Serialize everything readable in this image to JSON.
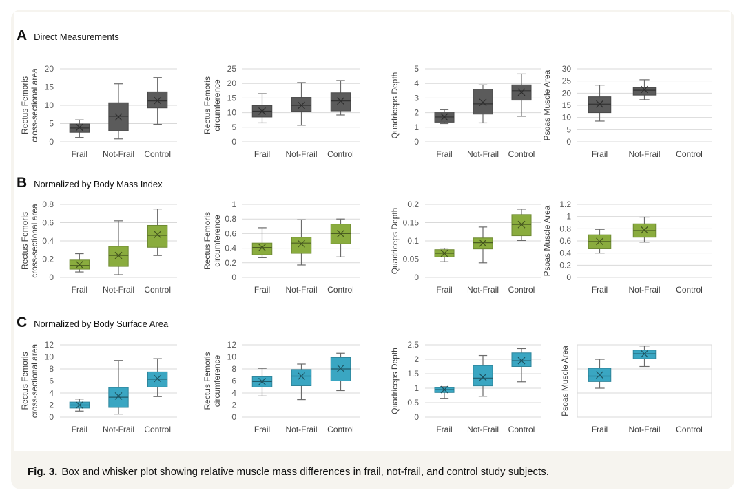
{
  "rows": [
    {
      "letter": "A",
      "title": "Direct Measurements"
    },
    {
      "letter": "B",
      "title": "Normalized  by Body Mass Index"
    },
    {
      "letter": "C",
      "title": "Normalized by Body Surface Area"
    }
  ],
  "caption": {
    "label": "Fig. 3.",
    "text": "Box and whisker plot showing relative muscle mass differences in frail, not-frail, and control study subjects."
  },
  "colors": {
    "A": "#5b5b5b",
    "B": "#8aac3e",
    "C": "#3aa6c2",
    "grid": "#d9d9d9",
    "axis_text": "#595959"
  },
  "chart_data": [
    {
      "type": "box",
      "panel": "A",
      "ylabel": "Rectus Femoris\ncross-sectional area",
      "categories": [
        "Frail",
        "Not-Frail",
        "Control"
      ],
      "ylim": [
        0,
        20
      ],
      "ticks": [
        0,
        5,
        10,
        15,
        20
      ],
      "boxes": [
        {
          "min": 1.2,
          "q1": 2.6,
          "median": 3.8,
          "q3": 4.9,
          "max": 6.0,
          "mean": 4.0
        },
        {
          "min": 0.8,
          "q1": 3.0,
          "median": 7.0,
          "q3": 10.7,
          "max": 15.9,
          "mean": 6.8
        },
        {
          "min": 4.8,
          "q1": 9.3,
          "median": 11.2,
          "q3": 13.7,
          "max": 17.6,
          "mean": 11.3
        }
      ]
    },
    {
      "type": "box",
      "panel": "A",
      "ylabel": "Rectus Femoris\ncircumference",
      "categories": [
        "Frail",
        "Not-Frail",
        "Control"
      ],
      "ylim": [
        0,
        25
      ],
      "ticks": [
        0,
        5,
        10,
        15,
        20,
        25
      ],
      "boxes": [
        {
          "min": 6.5,
          "q1": 8.5,
          "median": 10.5,
          "q3": 12.4,
          "max": 16.5,
          "mean": 10.5
        },
        {
          "min": 5.7,
          "q1": 10.5,
          "median": 12.5,
          "q3": 15.2,
          "max": 20.3,
          "mean": 12.5
        },
        {
          "min": 9.2,
          "q1": 10.6,
          "median": 14.0,
          "q3": 16.8,
          "max": 21.0,
          "mean": 14.0
        }
      ]
    },
    {
      "type": "box",
      "panel": "A",
      "ylabel": "Quadriceps  Depth",
      "categories": [
        "Frail",
        "Not-Frail",
        "Control"
      ],
      "ylim": [
        0,
        5
      ],
      "ticks": [
        0,
        1,
        2,
        3,
        4,
        5
      ],
      "boxes": [
        {
          "min": 1.25,
          "q1": 1.35,
          "median": 1.7,
          "q3": 2.05,
          "max": 2.2,
          "mean": 1.7
        },
        {
          "min": 1.3,
          "q1": 1.9,
          "median": 2.6,
          "q3": 3.6,
          "max": 3.9,
          "mean": 2.7
        },
        {
          "min": 1.75,
          "q1": 2.85,
          "median": 3.5,
          "q3": 3.9,
          "max": 4.65,
          "mean": 3.4
        }
      ]
    },
    {
      "type": "box",
      "panel": "A",
      "ylabel": "Psoas Muscle Area",
      "categories": [
        "Frail",
        "Not-Frail",
        "Control"
      ],
      "ylim": [
        0,
        30
      ],
      "ticks": [
        0,
        5,
        10,
        15,
        20,
        25,
        30
      ],
      "boxes": [
        {
          "min": 8.5,
          "q1": 12.0,
          "median": 15.5,
          "q3": 18.5,
          "max": 23.3,
          "mean": 15.5
        },
        {
          "min": 17.3,
          "q1": 19.2,
          "median": 21.2,
          "q3": 22.3,
          "max": 25.5,
          "mean": 21.5
        },
        null
      ]
    },
    {
      "type": "box",
      "panel": "B",
      "ylabel": "Rectus Femoris\ncross-sectional area",
      "categories": [
        "Frail",
        "Not-Frail",
        "Control"
      ],
      "ylim": [
        0,
        0.8
      ],
      "ticks": [
        0,
        0.2,
        0.4,
        0.6,
        0.8
      ],
      "boxes": [
        {
          "min": 0.06,
          "q1": 0.09,
          "median": 0.13,
          "q3": 0.19,
          "max": 0.26,
          "mean": 0.14
        },
        {
          "min": 0.03,
          "q1": 0.12,
          "median": 0.24,
          "q3": 0.34,
          "max": 0.62,
          "mean": 0.24
        },
        {
          "min": 0.24,
          "q1": 0.33,
          "median": 0.46,
          "q3": 0.57,
          "max": 0.75,
          "mean": 0.47
        }
      ]
    },
    {
      "type": "box",
      "panel": "B",
      "ylabel": "Rectus Femoris\ncircumference",
      "categories": [
        "Frail",
        "Not-Frail",
        "Control"
      ],
      "ylim": [
        0,
        1
      ],
      "ticks": [
        0,
        0.2,
        0.4,
        0.6,
        0.8,
        1
      ],
      "boxes": [
        {
          "min": 0.27,
          "q1": 0.31,
          "median": 0.41,
          "q3": 0.47,
          "max": 0.68,
          "mean": 0.41
        },
        {
          "min": 0.17,
          "q1": 0.33,
          "median": 0.47,
          "q3": 0.55,
          "max": 0.79,
          "mean": 0.46
        },
        {
          "min": 0.28,
          "q1": 0.46,
          "median": 0.6,
          "q3": 0.73,
          "max": 0.8,
          "mean": 0.6
        }
      ]
    },
    {
      "type": "box",
      "panel": "B",
      "ylabel": "Quadriceps  Depth",
      "categories": [
        "Frail",
        "Not-Frail",
        "Control"
      ],
      "ylim": [
        0,
        0.2
      ],
      "ticks": [
        0,
        0.05,
        0.1,
        0.15,
        0.2
      ],
      "boxes": [
        {
          "min": 0.043,
          "q1": 0.056,
          "median": 0.066,
          "q3": 0.076,
          "max": 0.08,
          "mean": 0.066
        },
        {
          "min": 0.04,
          "q1": 0.078,
          "median": 0.095,
          "q3": 0.108,
          "max": 0.138,
          "mean": 0.094
        },
        {
          "min": 0.101,
          "q1": 0.114,
          "median": 0.145,
          "q3": 0.172,
          "max": 0.187,
          "mean": 0.145
        }
      ]
    },
    {
      "type": "box",
      "panel": "B",
      "ylabel": "Psoas Muscle Area",
      "categories": [
        "Frail",
        "Not-Frail",
        "Control"
      ],
      "ylim": [
        0,
        1.2
      ],
      "ticks": [
        0,
        0.2,
        0.4,
        0.6,
        0.8,
        1,
        1.2
      ],
      "boxes": [
        {
          "min": 0.4,
          "q1": 0.47,
          "median": 0.59,
          "q3": 0.7,
          "max": 0.79,
          "mean": 0.59
        },
        {
          "min": 0.58,
          "q1": 0.66,
          "median": 0.77,
          "q3": 0.88,
          "max": 0.99,
          "mean": 0.78
        },
        null
      ]
    },
    {
      "type": "box",
      "panel": "C",
      "ylabel": "Rectus Femoris\ncross-sectional area",
      "categories": [
        "Frail",
        "Not-Frail",
        "Control"
      ],
      "ylim": [
        0,
        12
      ],
      "ticks": [
        0,
        2,
        4,
        6,
        8,
        10,
        12
      ],
      "boxes": [
        {
          "min": 1.0,
          "q1": 1.5,
          "median": 2.0,
          "q3": 2.5,
          "max": 3.0,
          "mean": 2.0
        },
        {
          "min": 0.5,
          "q1": 1.6,
          "median": 3.3,
          "q3": 4.9,
          "max": 9.4,
          "mean": 3.5
        },
        {
          "min": 3.4,
          "q1": 5.0,
          "median": 6.3,
          "q3": 7.5,
          "max": 9.7,
          "mean": 6.4
        }
      ]
    },
    {
      "type": "box",
      "panel": "C",
      "ylabel": "Rectus Femoris\ncircumference",
      "categories": [
        "Frail",
        "Not-Frail",
        "Control"
      ],
      "ylim": [
        0,
        12
      ],
      "ticks": [
        0,
        2,
        4,
        6,
        8,
        10,
        12
      ],
      "boxes": [
        {
          "min": 3.5,
          "q1": 5.0,
          "median": 5.9,
          "q3": 6.7,
          "max": 8.1,
          "mean": 5.9
        },
        {
          "min": 2.9,
          "q1": 5.2,
          "median": 6.8,
          "q3": 7.9,
          "max": 8.8,
          "mean": 6.8
        },
        {
          "min": 4.4,
          "q1": 6.0,
          "median": 8.0,
          "q3": 9.9,
          "max": 10.6,
          "mean": 8.1
        }
      ]
    },
    {
      "type": "box",
      "panel": "C",
      "ylabel": "Quadriceps Depth",
      "categories": [
        "Frail",
        "Not-Frail",
        "Control"
      ],
      "ylim": [
        0,
        2.5
      ],
      "ticks": [
        0,
        0.5,
        1,
        1.5,
        2,
        2.5
      ],
      "boxes": [
        {
          "min": 0.65,
          "q1": 0.85,
          "median": 0.95,
          "q3": 1.02,
          "max": 1.05,
          "mean": 0.95
        },
        {
          "min": 0.72,
          "q1": 1.08,
          "median": 1.35,
          "q3": 1.78,
          "max": 2.13,
          "mean": 1.38
        },
        {
          "min": 1.22,
          "q1": 1.75,
          "median": 1.95,
          "q3": 2.22,
          "max": 2.37,
          "mean": 1.95
        }
      ]
    },
    {
      "type": "box",
      "panel": "C",
      "ylabel": "Psoas Muscle Area",
      "categories": [
        "Frail",
        "Not-Frail",
        "Control"
      ],
      "ylim": [
        0,
        12
      ],
      "ticks": [],
      "boxes": [
        {
          "min": 4.8,
          "q1": 5.9,
          "median": 6.8,
          "q3": 8.1,
          "max": 9.6,
          "mean": 7.0
        },
        {
          "min": 8.4,
          "q1": 9.7,
          "median": 10.5,
          "q3": 11.1,
          "max": 11.8,
          "mean": 10.5
        },
        null
      ]
    }
  ]
}
